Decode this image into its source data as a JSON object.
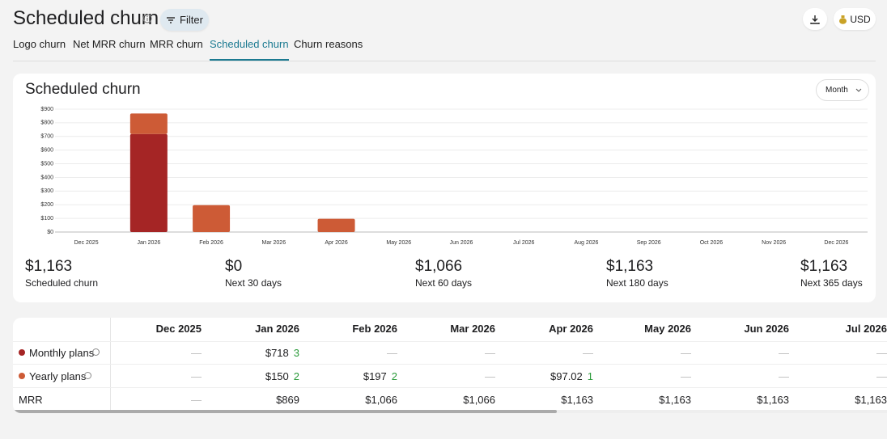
{
  "header": {
    "title": "Scheduled churn",
    "filter": "Filter",
    "currency": "USD"
  },
  "tabs": [
    "Logo churn",
    "Net MRR churn",
    "MRR churn",
    "Scheduled churn",
    "Churn reasons"
  ],
  "active_tab": 3,
  "card": {
    "title": "Scheduled churn",
    "period": "Month"
  },
  "chart_data": {
    "type": "bar",
    "stacked": true,
    "categories": [
      "Dec 2025",
      "Jan 2026",
      "Feb 2026",
      "Mar 2026",
      "Apr 2026",
      "May 2026",
      "Jun 2026",
      "Jul 2026",
      "Aug 2026",
      "Sep 2026",
      "Oct 2026",
      "Nov 2026",
      "Dec 2026"
    ],
    "series": [
      {
        "name": "Monthly plans",
        "color": "#a52525",
        "values": [
          null,
          718,
          null,
          null,
          null,
          null,
          null,
          null,
          null,
          null,
          null,
          null,
          null
        ]
      },
      {
        "name": "Yearly plans",
        "color": "#cd5b36",
        "values": [
          null,
          150,
          197,
          null,
          97.02,
          null,
          null,
          null,
          null,
          null,
          null,
          null,
          null
        ]
      }
    ],
    "ylim": [
      0,
      900
    ],
    "yticks": [
      {
        "value": 0,
        "label": "$0"
      },
      {
        "value": 100,
        "label": "$100"
      },
      {
        "value": 200,
        "label": "$200"
      },
      {
        "value": 300,
        "label": "$300"
      },
      {
        "value": 400,
        "label": "$400"
      },
      {
        "value": 500,
        "label": "$500"
      },
      {
        "value": 600,
        "label": "$600"
      },
      {
        "value": 700,
        "label": "$700"
      },
      {
        "value": 800,
        "label": "$800"
      },
      {
        "value": 900,
        "label": "$900"
      }
    ],
    "grid": true
  },
  "summary": [
    {
      "amount": "$1,163",
      "label": "Scheduled churn"
    },
    {
      "amount": "$0",
      "label": "Next 30 days"
    },
    {
      "amount": "$1,066",
      "label": "Next 60 days"
    },
    {
      "amount": "$1,163",
      "label": "Next 180 days"
    },
    {
      "amount": "$1,163",
      "label": "Next 365 days"
    }
  ],
  "table": {
    "columns": [
      "Dec 2025",
      "Jan 2026",
      "Feb 2026",
      "Mar 2026",
      "Apr 2026",
      "May 2026",
      "Jun 2026",
      "Jul 2026"
    ],
    "rows": [
      {
        "cells": [
          "—",
          {
            "amount": "$718",
            "count": "3"
          },
          "—",
          "—",
          "—",
          "—",
          "—",
          "—"
        ]
      },
      {
        "cells": [
          "—",
          {
            "amount": "$150",
            "count": "2"
          },
          {
            "amount": "$197",
            "count": "2"
          },
          "—",
          {
            "amount": "$97.02",
            "count": "1"
          },
          "—",
          "—",
          "—"
        ]
      },
      {
        "label": "MRR",
        "cells": [
          "—",
          "$869",
          "$1,066",
          "$1,066",
          "$1,163",
          "$1,163",
          "$1,163",
          "$1,163"
        ]
      }
    ]
  }
}
